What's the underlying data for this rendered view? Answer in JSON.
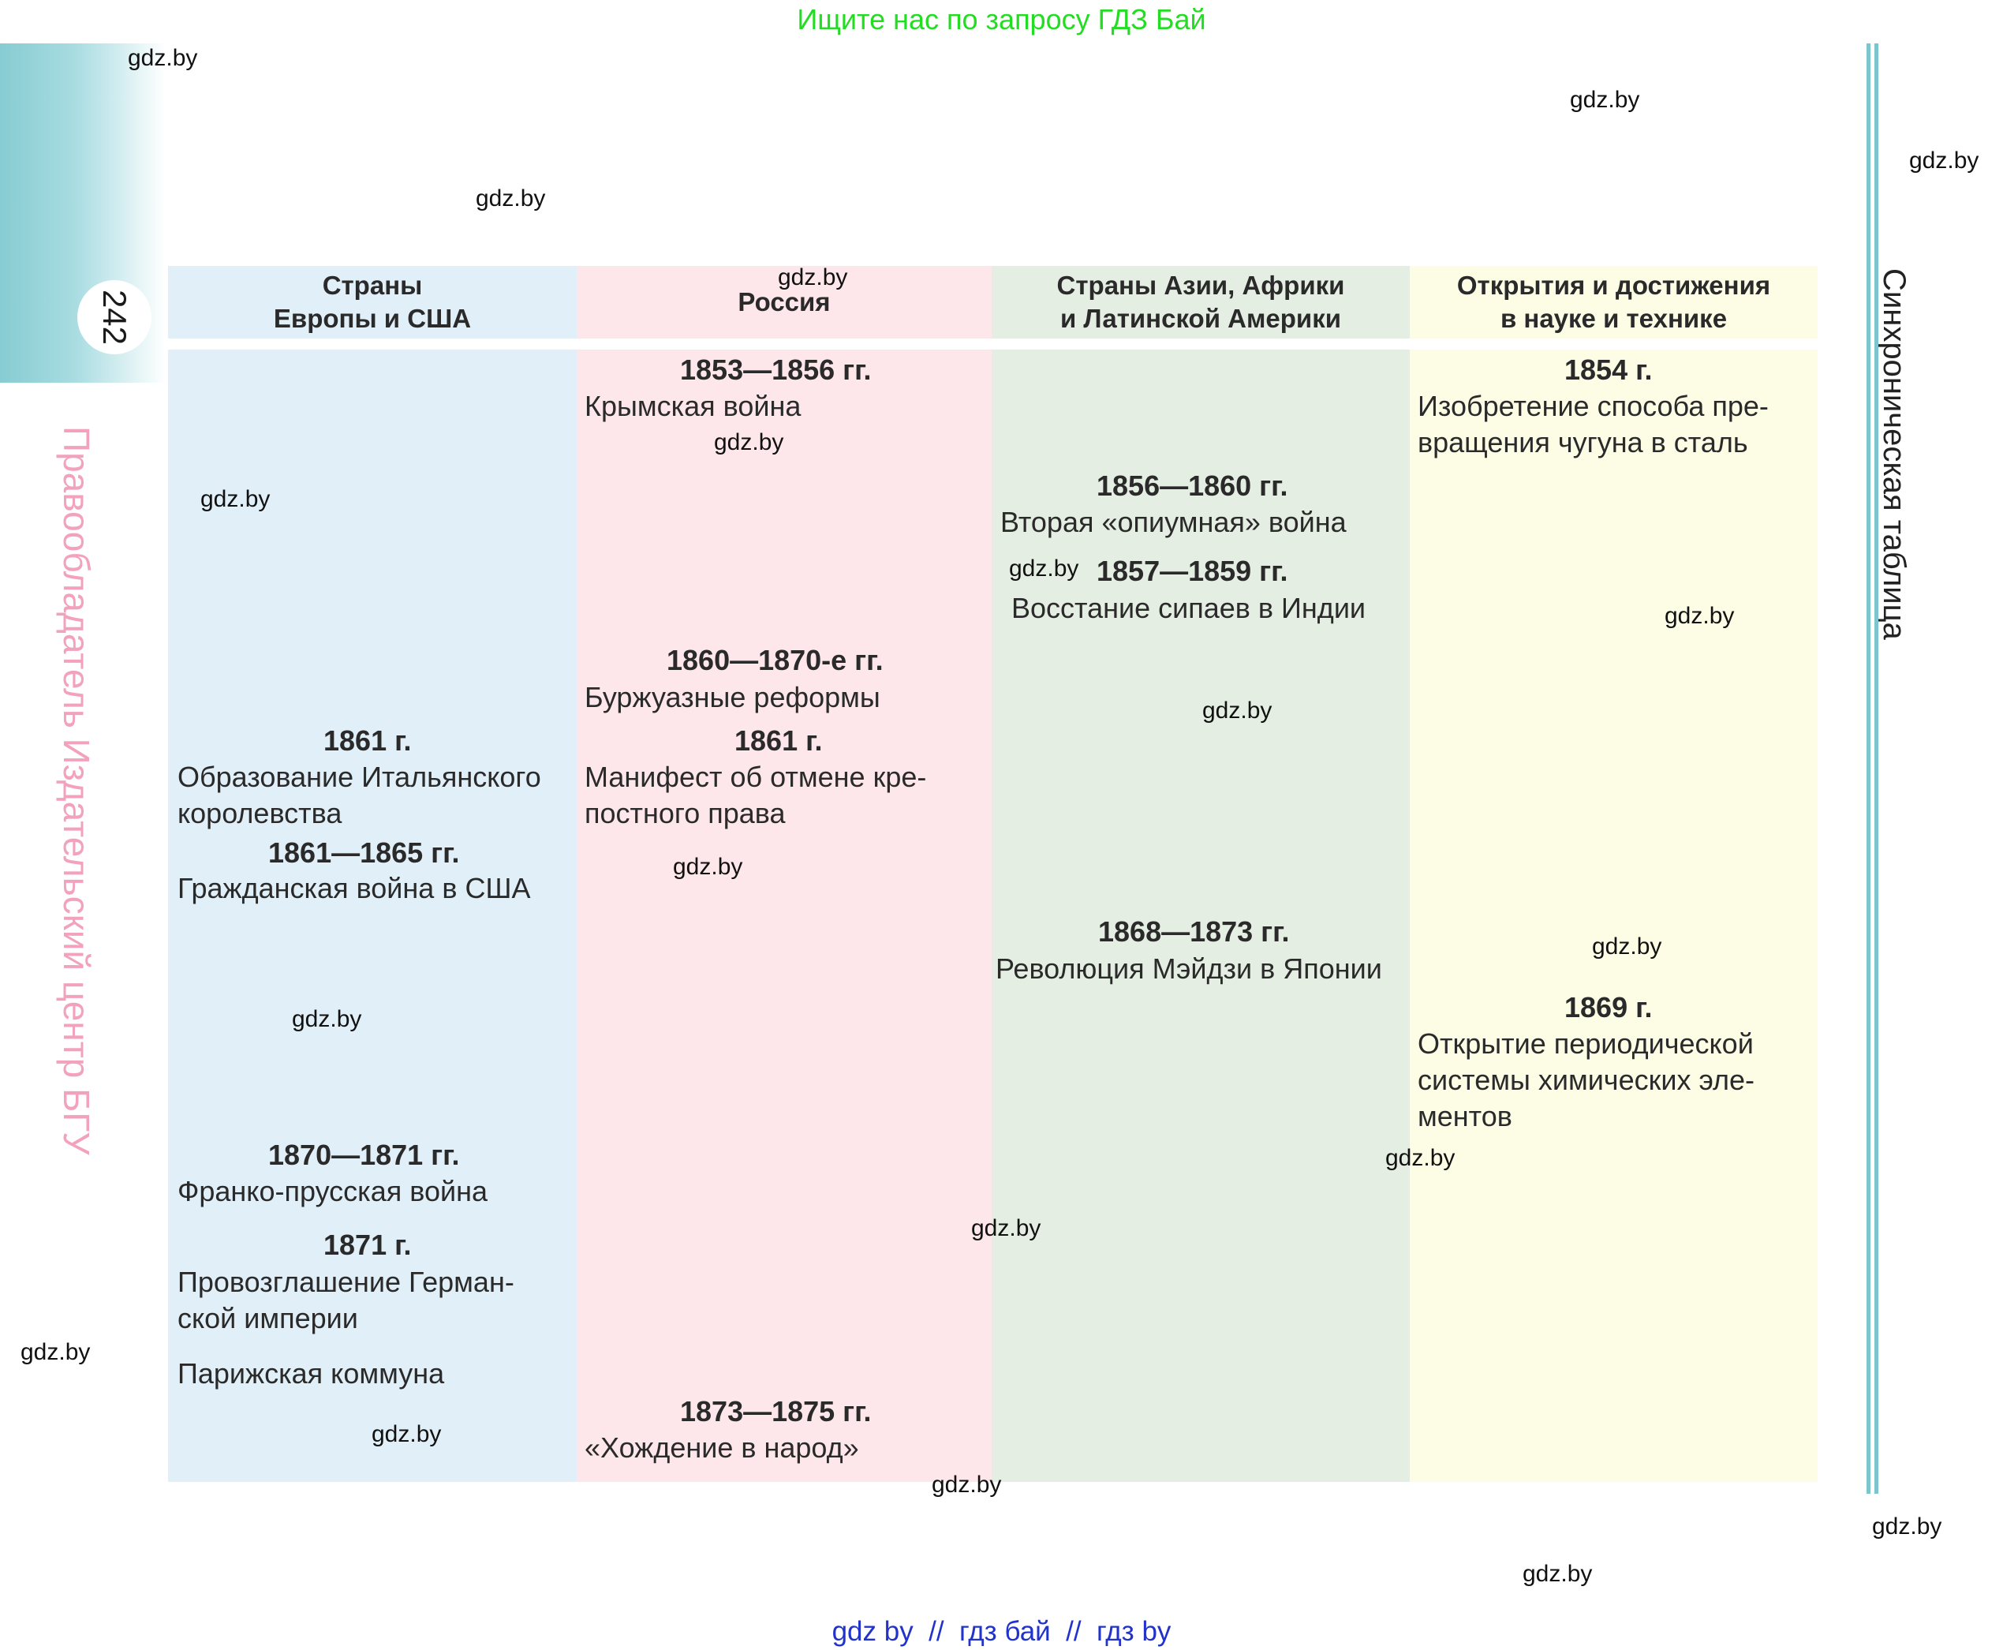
{
  "banner": "Ищите нас по запросу ГДЗ Бай",
  "page_number": "242",
  "left_vertical_text": "Правообладатель Издательский центр БГУ",
  "right_vertical_text": "Синхроническая таблица",
  "columns": [
    {
      "header_line1": "Страны",
      "header_line2": "Европы и США"
    },
    {
      "header_line1": "Россия",
      "header_line2": ""
    },
    {
      "header_line1": "Страны Азии, Африки",
      "header_line2": "и Латинской Америки"
    },
    {
      "header_line1": "Открытия и достижения",
      "header_line2": "в науке и технике"
    }
  ],
  "europe": [
    {
      "year": "1861 г.",
      "desc": [
        "Образование Итальянского",
        "королевства"
      ]
    },
    {
      "year": "1861—1865 гг.",
      "desc": [
        "Гражданская война в США"
      ]
    },
    {
      "year": "1870—1871 гг.",
      "desc": [
        "Франко-прусская война"
      ]
    },
    {
      "year": "1871 г.",
      "desc": [
        "Провозглашение Герман-",
        "ской империи"
      ]
    },
    {
      "year": "",
      "desc": [
        "Парижская коммуна"
      ]
    }
  ],
  "russia": [
    {
      "year": "1853—1856 гг.",
      "desc": [
        "Крымская война"
      ]
    },
    {
      "year": "1860—1870-е гг.",
      "desc": [
        "Буржуазные реформы"
      ]
    },
    {
      "year": "1861 г.",
      "desc": [
        "Манифест об отмене кре-",
        "постного права"
      ]
    },
    {
      "year": "1873—1875 гг.",
      "desc": [
        "«Хождение в народ»"
      ]
    }
  ],
  "asia": [
    {
      "year": "1856—1860 гг.",
      "desc": [
        "Вторая «опиумная» война"
      ]
    },
    {
      "year": "1857—1859 гг.",
      "desc": [
        "Восстание сипаев в Индии"
      ]
    },
    {
      "year": "1868—1873 гг.",
      "desc": [
        "Революция Мэйдзи в Японии"
      ]
    }
  ],
  "science": [
    {
      "year": "1854 г.",
      "desc": [
        "Изобретение способа пре-",
        "вращения чугуна в сталь"
      ]
    },
    {
      "year": "1869 г.",
      "desc": [
        "Открытие периодической",
        "системы химических эле-",
        "ментов"
      ]
    }
  ],
  "watermark": "gdz.by",
  "bottom_links": "gdz by  //  гдз бай  //  гдз by"
}
